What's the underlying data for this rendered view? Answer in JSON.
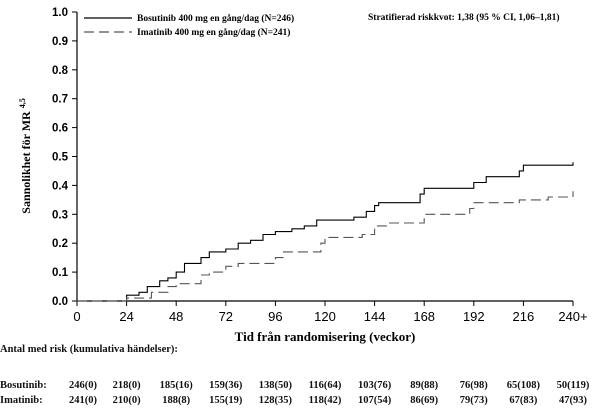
{
  "chart_data": {
    "type": "line",
    "step": true,
    "title": "",
    "xlabel": "Tid från randomisering (veckor)",
    "ylabel": "Sannolikhet för MR",
    "ylabel_superscript": "4,5",
    "xlim": [
      0,
      240
    ],
    "ylim": [
      0,
      1.0
    ],
    "x_ticks": [
      "0",
      "24",
      "48",
      "72",
      "96",
      "120",
      "144",
      "168",
      "192",
      "216",
      "240+"
    ],
    "x_tick_values": [
      0,
      24,
      48,
      72,
      96,
      120,
      144,
      168,
      192,
      216,
      240
    ],
    "y_ticks": [
      "0.0",
      "0.1",
      "0.2",
      "0.3",
      "0.4",
      "0.5",
      "0.6",
      "0.7",
      "0.8",
      "0.9",
      "1.0"
    ],
    "y_tick_values": [
      0,
      0.1,
      0.2,
      0.3,
      0.4,
      0.5,
      0.6,
      0.7,
      0.8,
      0.9,
      1.0
    ],
    "grid": false,
    "legend_position": "top-left",
    "annotation": "Stratifierad riskkvot: 1,38 (95 % CI, 1,06–1,81)",
    "series": [
      {
        "name": "Bosutinib 400 mg en gång/dag (N=246)",
        "color": "#000000",
        "dash": "solid",
        "points": [
          [
            0,
            0
          ],
          [
            24,
            0
          ],
          [
            24,
            0.02
          ],
          [
            30,
            0.02
          ],
          [
            30,
            0.03
          ],
          [
            34,
            0.03
          ],
          [
            34,
            0.05
          ],
          [
            40,
            0.05
          ],
          [
            40,
            0.07
          ],
          [
            44,
            0.07
          ],
          [
            44,
            0.08
          ],
          [
            48,
            0.08
          ],
          [
            48,
            0.1
          ],
          [
            52,
            0.1
          ],
          [
            52,
            0.13
          ],
          [
            60,
            0.13
          ],
          [
            60,
            0.15
          ],
          [
            64,
            0.15
          ],
          [
            64,
            0.17
          ],
          [
            72,
            0.17
          ],
          [
            72,
            0.18
          ],
          [
            78,
            0.18
          ],
          [
            78,
            0.2
          ],
          [
            84,
            0.2
          ],
          [
            84,
            0.21
          ],
          [
            90,
            0.21
          ],
          [
            90,
            0.23
          ],
          [
            96,
            0.23
          ],
          [
            96,
            0.24
          ],
          [
            104,
            0.24
          ],
          [
            104,
            0.25
          ],
          [
            110,
            0.25
          ],
          [
            110,
            0.26
          ],
          [
            116,
            0.26
          ],
          [
            116,
            0.28
          ],
          [
            134,
            0.28
          ],
          [
            134,
            0.29
          ],
          [
            140,
            0.29
          ],
          [
            140,
            0.31
          ],
          [
            144,
            0.31
          ],
          [
            144,
            0.33
          ],
          [
            146,
            0.33
          ],
          [
            146,
            0.34
          ],
          [
            166,
            0.34
          ],
          [
            166,
            0.37
          ],
          [
            168,
            0.37
          ],
          [
            168,
            0.39
          ],
          [
            192,
            0.39
          ],
          [
            192,
            0.41
          ],
          [
            198,
            0.41
          ],
          [
            198,
            0.43
          ],
          [
            214,
            0.43
          ],
          [
            214,
            0.45
          ],
          [
            216,
            0.45
          ],
          [
            216,
            0.47
          ],
          [
            240,
            0.47
          ],
          [
            240,
            0.48
          ]
        ]
      },
      {
        "name": "Imatinib 400 mg en gång/dag (N=241)",
        "color": "#555555",
        "dash": "dashed",
        "points": [
          [
            0,
            0
          ],
          [
            24,
            0
          ],
          [
            24,
            0.01
          ],
          [
            36,
            0.01
          ],
          [
            36,
            0.03
          ],
          [
            44,
            0.03
          ],
          [
            44,
            0.05
          ],
          [
            48,
            0.05
          ],
          [
            48,
            0.06
          ],
          [
            60,
            0.06
          ],
          [
            60,
            0.09
          ],
          [
            64,
            0.09
          ],
          [
            64,
            0.1
          ],
          [
            72,
            0.1
          ],
          [
            72,
            0.12
          ],
          [
            78,
            0.12
          ],
          [
            78,
            0.13
          ],
          [
            96,
            0.13
          ],
          [
            96,
            0.15
          ],
          [
            100,
            0.15
          ],
          [
            100,
            0.17
          ],
          [
            118,
            0.17
          ],
          [
            118,
            0.2
          ],
          [
            120,
            0.2
          ],
          [
            120,
            0.22
          ],
          [
            138,
            0.22
          ],
          [
            138,
            0.23
          ],
          [
            144,
            0.23
          ],
          [
            144,
            0.26
          ],
          [
            150,
            0.26
          ],
          [
            150,
            0.27
          ],
          [
            168,
            0.27
          ],
          [
            168,
            0.3
          ],
          [
            190,
            0.3
          ],
          [
            190,
            0.32
          ],
          [
            192,
            0.32
          ],
          [
            192,
            0.34
          ],
          [
            214,
            0.34
          ],
          [
            214,
            0.35
          ],
          [
            228,
            0.35
          ],
          [
            228,
            0.36
          ],
          [
            240,
            0.36
          ],
          [
            240,
            0.38
          ]
        ]
      }
    ]
  },
  "risk_table": {
    "title": "Antal med risk (kumulativa händelser):",
    "rows": [
      {
        "label": "Bosutinib:",
        "values": [
          "246(0)",
          "218(0)",
          "185(16)",
          "159(36)",
          "138(50)",
          "116(64)",
          "103(76)",
          "89(88)",
          "76(98)",
          "65(108)",
          "50(119)"
        ]
      },
      {
        "label": "Imatinib:",
        "values": [
          "241(0)",
          "210(0)",
          "188(8)",
          "155(19)",
          "128(35)",
          "118(42)",
          "107(54)",
          "86(69)",
          "79(73)",
          "67(83)",
          "47(93)"
        ]
      }
    ]
  }
}
